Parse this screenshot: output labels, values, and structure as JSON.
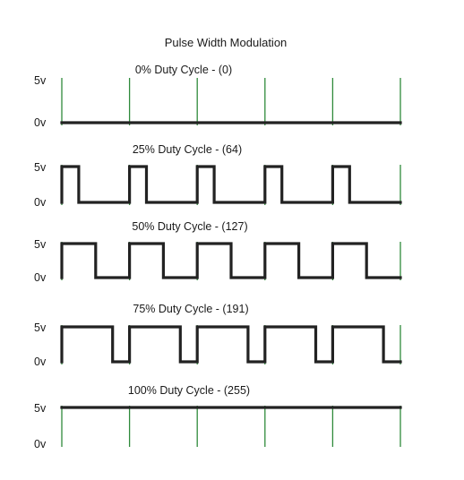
{
  "title": "Pulse Width Modulation",
  "colors": {
    "gridline": "#2f8a3b",
    "waveform": "#222222"
  },
  "panels": [
    {
      "label": "0% Duty Cycle - (0)",
      "duty_percent": 0,
      "value": 0,
      "high_label": "5v",
      "low_label": "0v"
    },
    {
      "label": "25% Duty Cycle - (64)",
      "duty_percent": 25,
      "value": 64,
      "high_label": "5v",
      "low_label": "0v"
    },
    {
      "label": "50% Duty Cycle - (127)",
      "duty_percent": 50,
      "value": 127,
      "high_label": "5v",
      "low_label": "0v"
    },
    {
      "label": "75% Duty Cycle - (191)",
      "duty_percent": 75,
      "value": 191,
      "high_label": "5v",
      "low_label": "0v"
    },
    {
      "label": "100% Duty Cycle - (255)",
      "duty_percent": 100,
      "value": 255,
      "high_label": "5v",
      "low_label": "0v"
    }
  ],
  "periods": 5
}
